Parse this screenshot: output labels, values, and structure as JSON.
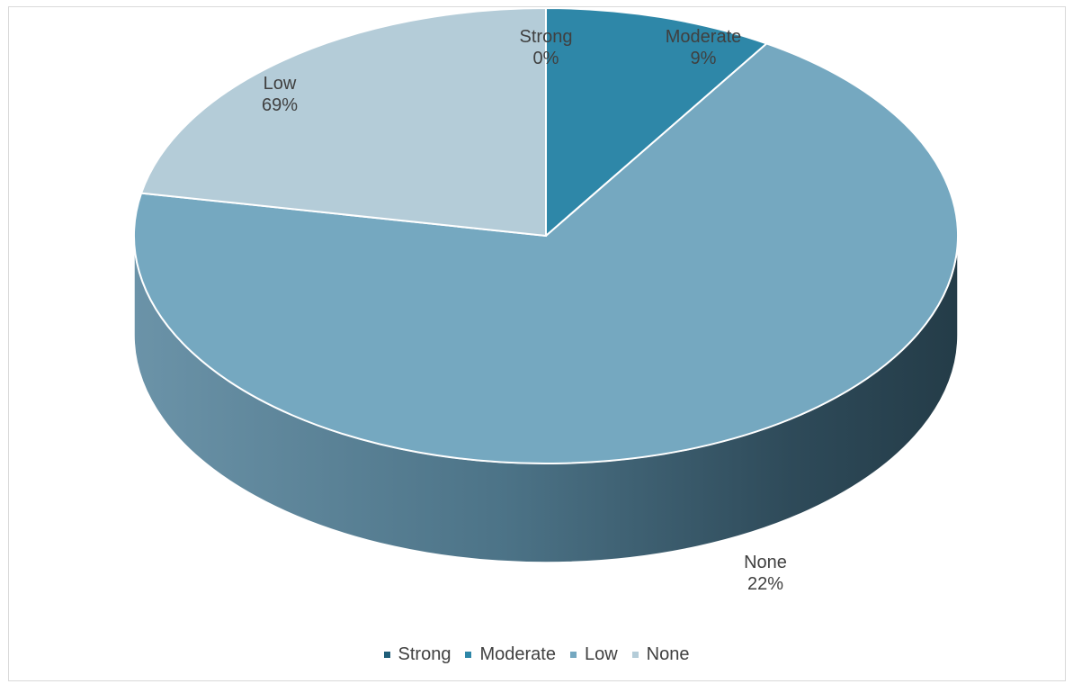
{
  "chart_data": {
    "type": "pie",
    "style": "3d",
    "categories": [
      "Strong",
      "Moderate",
      "Low",
      "None"
    ],
    "values": [
      0,
      9,
      69,
      22
    ],
    "data_labels": [
      "0%",
      "9%",
      "69%",
      "22%"
    ],
    "colors": [
      "#1f5e79",
      "#2e87a8",
      "#75a8c0",
      "#b4ccd8"
    ],
    "legend": {
      "position": "bottom",
      "entries": [
        "Strong",
        "Moderate",
        "Low",
        "None"
      ]
    }
  }
}
